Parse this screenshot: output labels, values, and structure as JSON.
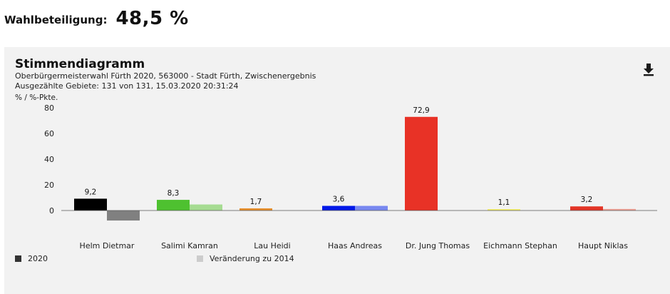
{
  "header": {
    "turnout_label": "Wahlbeteiligung:",
    "turnout_value": "48,5 %"
  },
  "panel": {
    "download_icon": "download-icon"
  },
  "chart_data": {
    "type": "bar",
    "title": "Stimmendiagramm",
    "subtitle": "Oberbürgermeisterwahl Fürth 2020, 563000 - Stadt Fürth, Zwischenergebnis",
    "subtitle2": "Ausgezählte Gebiete: 131 von 131, 15.03.2020 20:31:24",
    "ylabel": "% / %-Pkte.",
    "ylim": [
      -5,
      80
    ],
    "yticks": [
      "80",
      "60",
      "40",
      "20",
      "0"
    ],
    "yticks_values": [
      80,
      60,
      40,
      20,
      0
    ],
    "grid": false,
    "legend_position": "bottom",
    "categories": [
      "Helm Dietmar",
      "Salimi Kamran",
      "Lau Heidi",
      "Haas Andreas",
      "Dr. Jung Thomas",
      "Eichmann Stephan",
      "Haupt Niklas"
    ],
    "series": [
      {
        "name": "2020",
        "values": [
          9.2,
          8.3,
          1.7,
          3.6,
          72.9,
          1.1,
          3.2
        ],
        "labels": [
          "9,2",
          "8,3",
          "1,7",
          "3,6",
          "72,9",
          "1,1",
          "3,2"
        ],
        "colors": [
          "#000000",
          "#4ec130",
          "#e8902e",
          "#0018e8",
          "#e83226",
          "#f5f06a",
          "#e33426"
        ]
      },
      {
        "name": "Veränderung zu 2014",
        "values": [
          -7.8,
          4.7,
          0,
          3.6,
          0,
          0,
          1.2
        ],
        "colors": [
          "#808080",
          "#a6dc92",
          "#f0c090",
          "#7888f0",
          "#f09088",
          "#f8f4a8",
          "#f0a094"
        ]
      }
    ],
    "legend_colors": [
      "#333333",
      "#cccccc"
    ]
  }
}
